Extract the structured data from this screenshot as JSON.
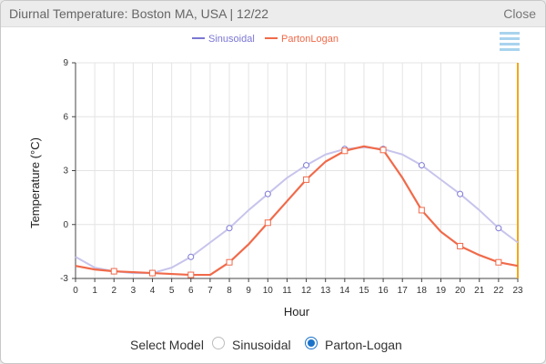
{
  "window": {
    "title": "Diurnal Temperature: Boston MA, USA | 12/22",
    "close_label": "Close"
  },
  "legend": {
    "items": [
      "Sinusoidal",
      "PartonLogan"
    ]
  },
  "model_select": {
    "label": "Select Model",
    "options": [
      "Sinusoidal",
      "Parton-Logan"
    ],
    "selected": "Parton-Logan"
  },
  "colors": {
    "sinusoidal": "#c7c4ec",
    "sinusoidal_marker": "#7b76d4",
    "parton_logan": "#f06a4a",
    "cursor_line": "#f0a818",
    "menu_icon": "#a9d3ee"
  },
  "chart_data": {
    "type": "line",
    "xlabel": "Hour",
    "ylabel": "Temperature (°C)",
    "xlim": [
      0,
      23
    ],
    "ylim": [
      -3,
      9
    ],
    "x_ticks": [
      0,
      1,
      2,
      3,
      4,
      5,
      6,
      7,
      8,
      9,
      10,
      11,
      12,
      13,
      14,
      15,
      16,
      17,
      18,
      19,
      20,
      21,
      22,
      23
    ],
    "y_ticks": [
      -3,
      0,
      3,
      6,
      9
    ],
    "grid": true,
    "legend_position": "top",
    "series": [
      {
        "name": "Sinusoidal",
        "x": [
          0,
          1,
          2,
          3,
          4,
          5,
          6,
          7,
          8,
          9,
          10,
          11,
          12,
          13,
          14,
          15,
          16,
          17,
          18,
          19,
          20,
          21,
          22,
          23
        ],
        "y": [
          -1.8,
          -2.4,
          -2.6,
          -2.7,
          -2.7,
          -2.4,
          -1.8,
          -1.0,
          -0.2,
          0.8,
          1.7,
          2.6,
          3.3,
          3.9,
          4.2,
          4.3,
          4.2,
          3.9,
          3.3,
          2.5,
          1.7,
          0.8,
          -0.2,
          -1.0
        ],
        "markers_at": [
          2,
          4,
          6,
          8,
          10,
          12,
          14,
          16,
          18,
          20,
          22
        ]
      },
      {
        "name": "PartonLogan",
        "x": [
          0,
          1,
          2,
          3,
          4,
          5,
          6,
          7,
          8,
          9,
          10,
          11,
          12,
          13,
          14,
          15,
          16,
          17,
          18,
          19,
          20,
          21,
          22,
          23
        ],
        "y": [
          -2.3,
          -2.5,
          -2.6,
          -2.65,
          -2.7,
          -2.75,
          -2.8,
          -2.8,
          -2.1,
          -1.1,
          0.1,
          1.3,
          2.5,
          3.5,
          4.1,
          4.35,
          4.15,
          2.6,
          0.8,
          -0.4,
          -1.2,
          -1.7,
          -2.1,
          -2.3
        ],
        "markers_at": [
          2,
          4,
          6,
          8,
          10,
          12,
          14,
          16,
          18,
          20,
          22
        ]
      }
    ],
    "cursor_x": 23
  }
}
